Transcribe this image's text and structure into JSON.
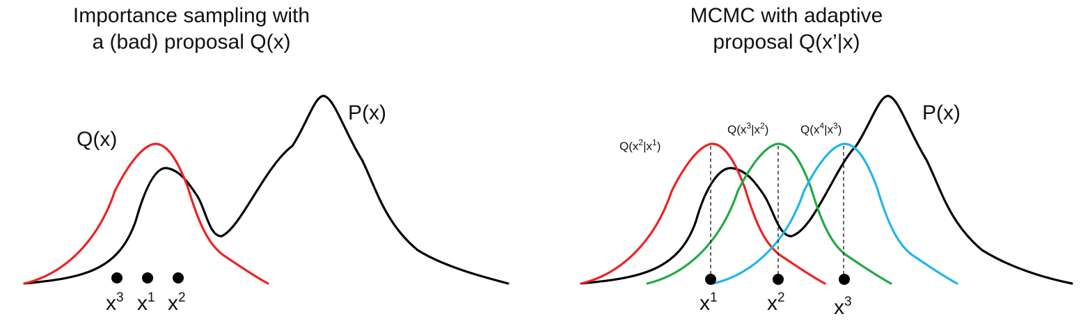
{
  "left_panel": {
    "title_line1": "Importance sampling with",
    "title_line2": "a (bad) proposal Q(x)",
    "target_label": "P(x)",
    "proposal_label": "Q(x)",
    "samples": [
      {
        "base": "x",
        "sup": "3"
      },
      {
        "base": "x",
        "sup": "1"
      },
      {
        "base": "x",
        "sup": "2"
      }
    ]
  },
  "right_panel": {
    "title_line1": "MCMC with adaptive",
    "title_line2": "proposal Q(x’|x)",
    "target_label": "P(x)",
    "proposals": [
      {
        "base": "Q(x",
        "sup1": "2",
        "mid": "|x",
        "sup2": "1",
        "end": ")",
        "color": "#ee2222"
      },
      {
        "base": "Q(x",
        "sup1": "3",
        "mid": "|x",
        "sup2": "2",
        "end": ")",
        "color": "#22aa44"
      },
      {
        "base": "Q(x",
        "sup1": "4",
        "mid": "|x",
        "sup2": "3",
        "end": ")",
        "color": "#22b5ee"
      }
    ],
    "samples": [
      {
        "base": "x",
        "sup": "1"
      },
      {
        "base": "x",
        "sup": "2"
      },
      {
        "base": "x",
        "sup": "3"
      }
    ]
  },
  "colors": {
    "target": "#000000",
    "proposal_left": "#ee2222"
  }
}
